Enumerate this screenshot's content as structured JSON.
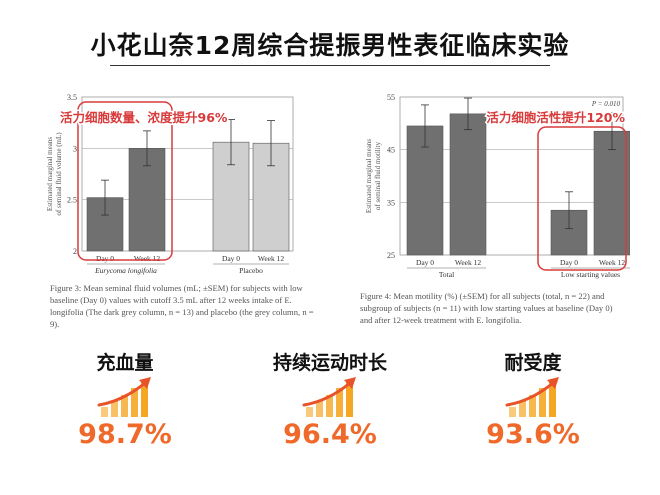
{
  "page": {
    "title": "小花山奈12周综合提振男性表征临床实验"
  },
  "colors": {
    "dark_bar": "#707070",
    "light_bar": "#cfcfcf",
    "highlight": "#d93a3a",
    "accent_value": "#ef6a2a",
    "icon_bars": "#f5a623"
  },
  "chart_data": [
    {
      "type": "bar",
      "annotation": "活力细胞数量、浓度提升96%",
      "ylabel": "Estimated marginal means of seminal fluid volume (mL)",
      "ylim": [
        2,
        3.5
      ],
      "yticks": [
        "2",
        "2.5",
        "3",
        "3.5"
      ],
      "categories": [
        "Day 0",
        "Week 12",
        "Day 0",
        "Week 12"
      ],
      "groups": [
        "Eurycoma longifolia",
        "Placebo"
      ],
      "values": [
        2.52,
        3.0,
        3.06,
        3.05
      ],
      "errors": [
        0.17,
        0.17,
        0.22,
        0.22
      ],
      "caption": "Figure 3: Mean seminal fluid volumes (mL; ±SEM) for subjects with low baseline (Day 0) values with cutoff 3.5 mL after 12 weeks intake of E. longifolia (The dark grey column, n = 13) and placebo (the grey column, n = 9)."
    },
    {
      "type": "bar",
      "annotation": "活力细胞活性提升120%",
      "pvalue": "P = 0.010",
      "ylabel": "Estimated marginal means of seminal fluid motility",
      "ylim": [
        25,
        55
      ],
      "yticks": [
        "25",
        "35",
        "45",
        "55"
      ],
      "categories": [
        "Day 0",
        "Week 12",
        "Day 0",
        "Week 12"
      ],
      "groups": [
        "Total",
        "Low starting values"
      ],
      "values": [
        49.5,
        51.8,
        33.5,
        48.5
      ],
      "errors": [
        4.0,
        3.0,
        3.5,
        3.5
      ],
      "caption": "Figure 4: Mean motility (%) (±SEM) for all subjects (total, n = 22) and subgroup of subjects (n = 11) with low starting values at baseline (Day 0) and after 12-week treatment with E. longifolia."
    }
  ],
  "metrics": [
    {
      "label": "充血量",
      "value": "98.7%"
    },
    {
      "label": "持续运动时长",
      "value": "96.4%"
    },
    {
      "label": "耐受度",
      "value": "93.6%"
    }
  ]
}
